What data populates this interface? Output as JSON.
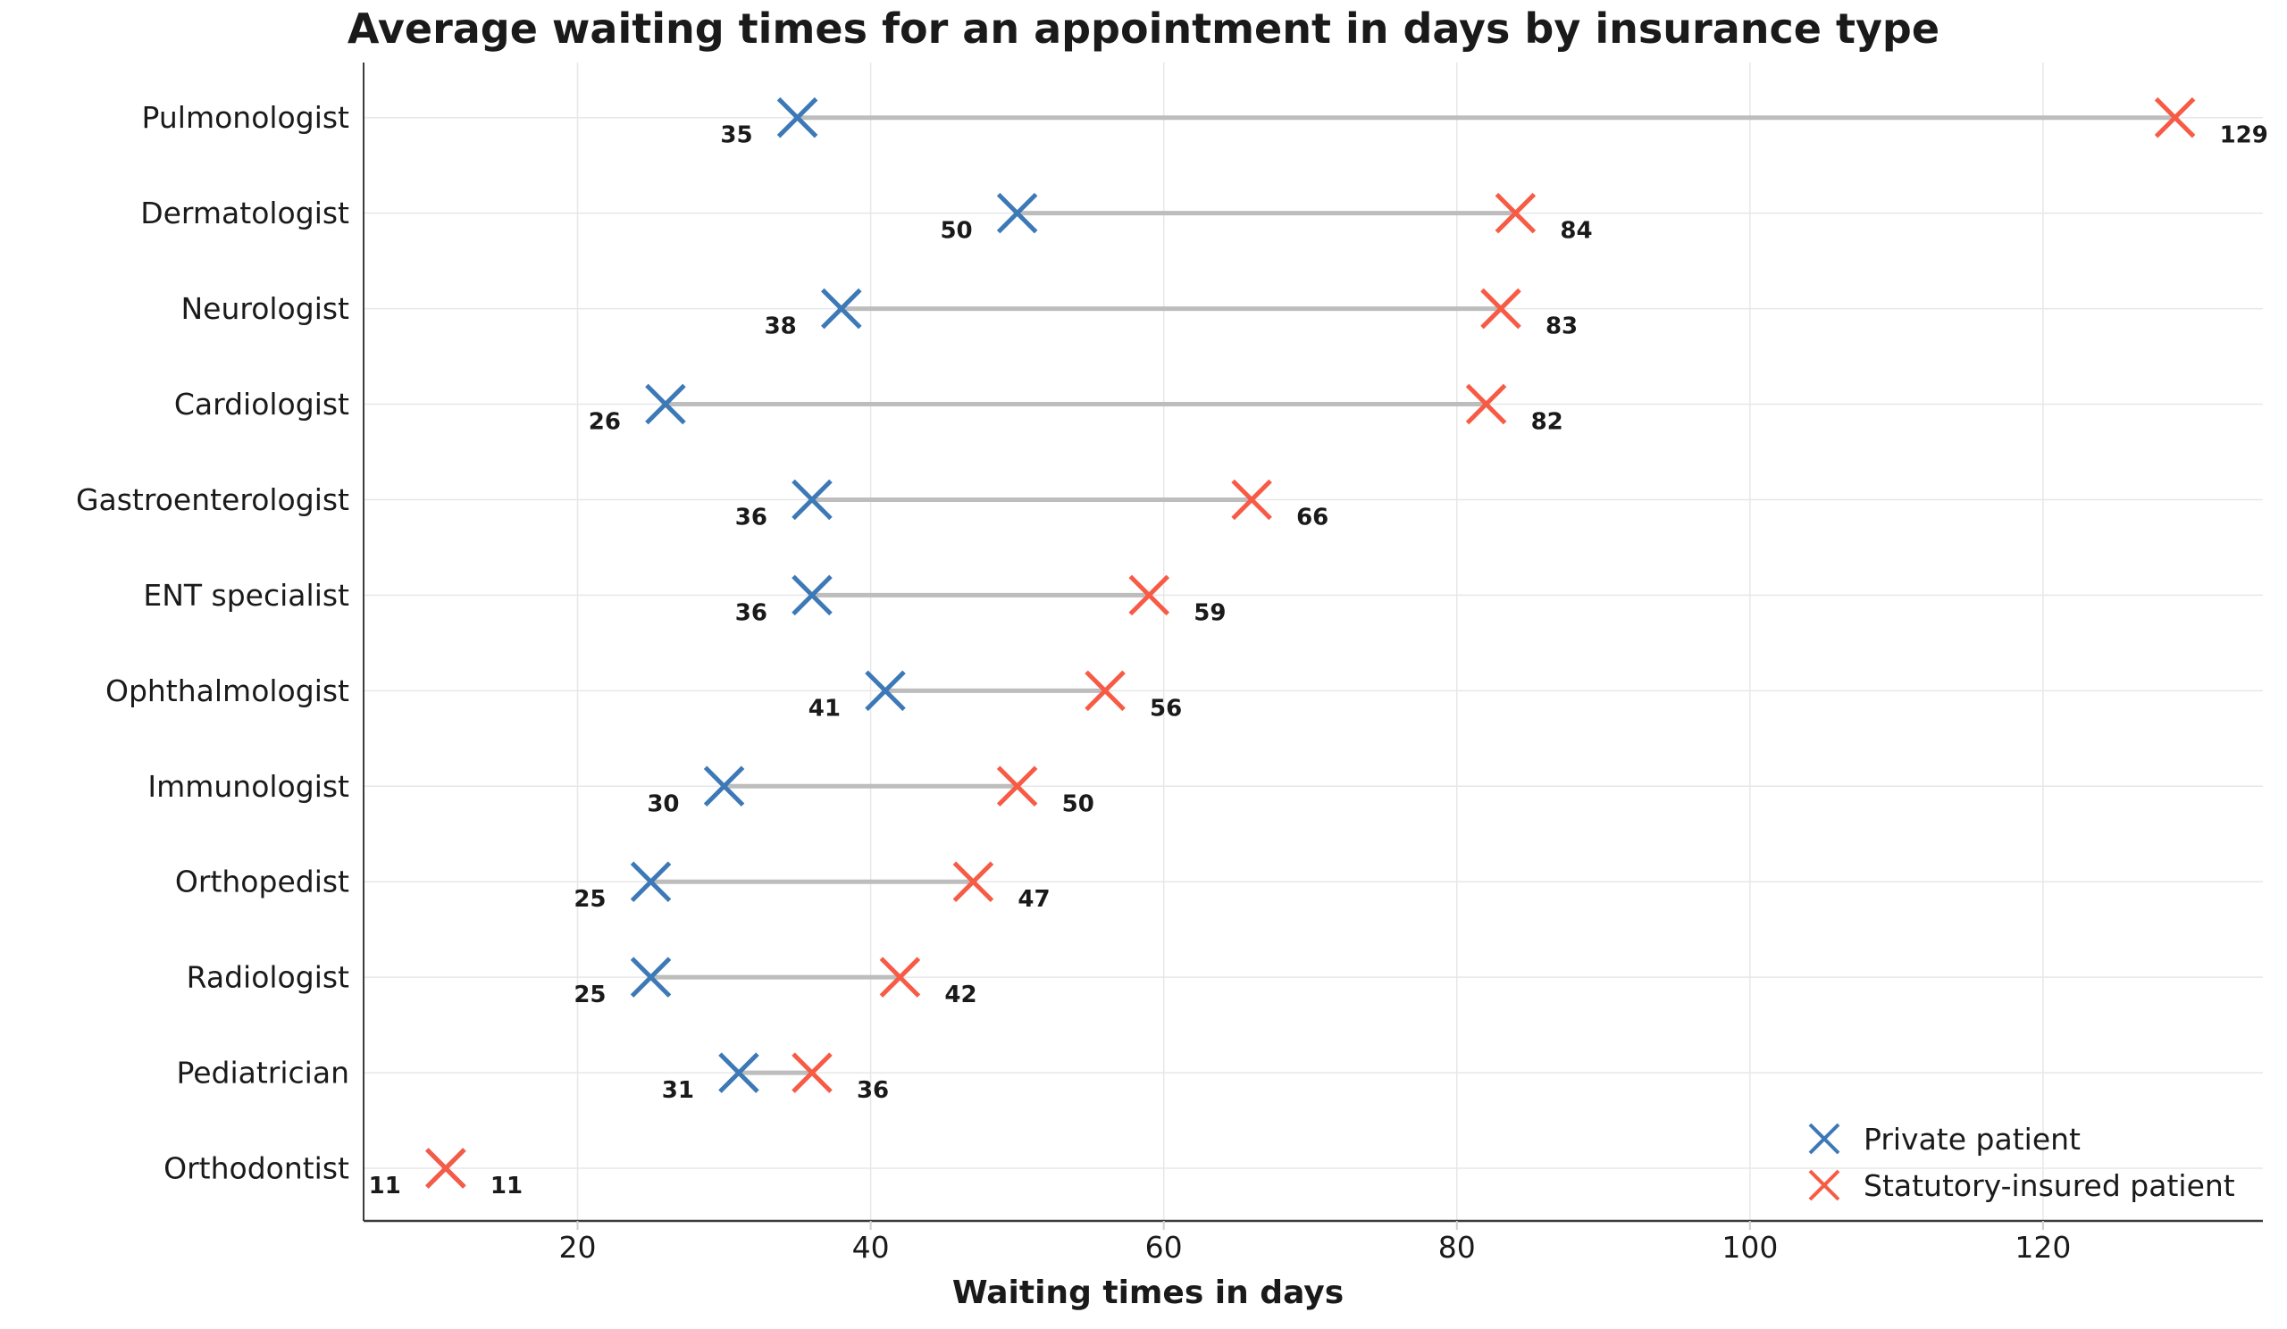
{
  "chart_data": {
    "type": "scatter",
    "subtype": "dumbbell",
    "title": "Average waiting times for an appointment in days by insurance type",
    "xlabel": "Waiting times in days",
    "ylabel": "",
    "categories": [
      "Pulmonologist",
      "Dermatologist",
      "Neurologist",
      "Cardiologist",
      "Gastroenterologist",
      "ENT specialist",
      "Ophthalmologist",
      "Immunologist",
      "Orthopedist",
      "Radiologist",
      "Pediatrician",
      "Orthodontist"
    ],
    "series": [
      {
        "name": "Private patient",
        "marker": "x",
        "color": "#3C79B6",
        "values": [
          35,
          50,
          38,
          26,
          36,
          36,
          41,
          30,
          25,
          25,
          31,
          11
        ]
      },
      {
        "name": "Statutory-insured patient",
        "marker": "x",
        "color": "#F75B45",
        "values": [
          129,
          84,
          83,
          82,
          66,
          59,
          56,
          50,
          47,
          42,
          36,
          11
        ]
      }
    ],
    "x_ticks": [
      20,
      40,
      60,
      80,
      100,
      120
    ],
    "xlim": [
      5.4,
      135
    ],
    "grid": true,
    "legend_position": "lower right",
    "value_labels_shown": true,
    "colors": {
      "connector": "#BDBDBD",
      "grid": "#E7E7E7",
      "axis": "#3C3C3C",
      "tick_mark": "#CFCFCF",
      "text": "#1A1A1A"
    }
  }
}
